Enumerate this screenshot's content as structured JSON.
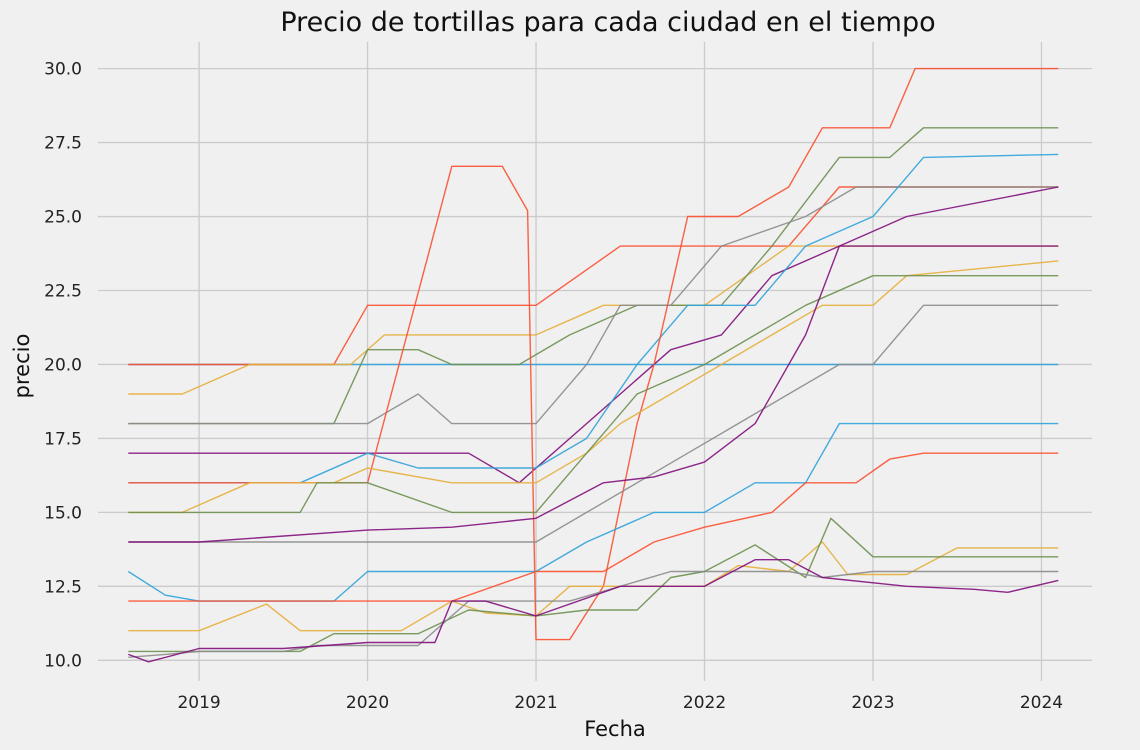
{
  "chart_data": {
    "type": "line",
    "title": "Precio de tortillas para cada ciudad en el tiempo",
    "xlabel": "Fecha",
    "ylabel": "precio",
    "xlim": [
      2018.4,
      2024.3
    ],
    "ylim": [
      9.3,
      30.9
    ],
    "x_ticks": [
      2019,
      2020,
      2021,
      2022,
      2023,
      2024
    ],
    "x_tick_labels": [
      "2019",
      "2020",
      "2021",
      "2022",
      "2023",
      "2024"
    ],
    "y_ticks": [
      10.0,
      12.5,
      15.0,
      17.5,
      20.0,
      22.5,
      25.0,
      27.5,
      30.0
    ],
    "y_tick_labels": [
      "10.0",
      "12.5",
      "15.0",
      "17.5",
      "20.0",
      "22.5",
      "25.0",
      "27.5",
      "30.0"
    ],
    "grid": true,
    "legend": "none",
    "palette": [
      "#30a2da",
      "#fc4f30",
      "#e5ae38",
      "#6d904f",
      "#8b8b8b",
      "#810f7c"
    ],
    "series": [
      {
        "values": [
          [
            2018.58,
            20
          ],
          [
            2019.0,
            20
          ],
          [
            2021.2,
            20
          ],
          [
            2022.0,
            20
          ],
          [
            2024.1,
            20
          ]
        ]
      },
      {
        "values": [
          [
            2018.58,
            20
          ],
          [
            2019.8,
            20
          ],
          [
            2020.0,
            22
          ],
          [
            2021.0,
            22
          ],
          [
            2021.5,
            24
          ],
          [
            2022.5,
            24
          ],
          [
            2022.8,
            26
          ],
          [
            2024.1,
            26
          ]
        ]
      },
      {
        "values": [
          [
            2018.58,
            19
          ],
          [
            2018.9,
            19
          ],
          [
            2019.3,
            20
          ],
          [
            2019.9,
            20
          ],
          [
            2020.1,
            21
          ],
          [
            2021.0,
            21
          ],
          [
            2021.4,
            22
          ],
          [
            2022.0,
            22
          ],
          [
            2022.5,
            24
          ],
          [
            2024.1,
            24
          ]
        ]
      },
      {
        "values": [
          [
            2018.58,
            18
          ],
          [
            2019.0,
            18
          ],
          [
            2019.8,
            18
          ],
          [
            2020.0,
            20.5
          ],
          [
            2020.3,
            20.5
          ],
          [
            2020.5,
            20
          ],
          [
            2020.9,
            20
          ],
          [
            2021.2,
            21
          ],
          [
            2021.6,
            22
          ],
          [
            2022.1,
            22
          ],
          [
            2022.4,
            24
          ],
          [
            2022.8,
            27
          ],
          [
            2023.1,
            27
          ],
          [
            2023.3,
            28
          ],
          [
            2024.1,
            28
          ]
        ]
      },
      {
        "values": [
          [
            2018.58,
            18
          ],
          [
            2020.0,
            18
          ],
          [
            2020.3,
            19
          ],
          [
            2020.5,
            18
          ],
          [
            2021.0,
            18
          ],
          [
            2021.3,
            20
          ],
          [
            2021.5,
            22
          ],
          [
            2021.8,
            22
          ],
          [
            2022.1,
            24
          ],
          [
            2022.6,
            25
          ],
          [
            2022.9,
            26
          ],
          [
            2023.2,
            26
          ],
          [
            2024.1,
            26
          ]
        ]
      },
      {
        "values": [
          [
            2018.58,
            17
          ],
          [
            2019.0,
            17
          ],
          [
            2019.5,
            17
          ],
          [
            2020.0,
            17
          ],
          [
            2020.6,
            17
          ],
          [
            2020.9,
            16
          ],
          [
            2021.3,
            18
          ],
          [
            2021.5,
            19
          ],
          [
            2021.8,
            20.5
          ],
          [
            2022.1,
            21
          ],
          [
            2022.4,
            23
          ],
          [
            2022.8,
            24
          ],
          [
            2023.2,
            25
          ],
          [
            2024.1,
            26
          ]
        ]
      },
      {
        "values": [
          [
            2018.58,
            16
          ],
          [
            2019.0,
            16
          ],
          [
            2019.6,
            16
          ],
          [
            2020.0,
            17
          ],
          [
            2020.3,
            16.5
          ],
          [
            2020.7,
            16.5
          ],
          [
            2021.0,
            16.5
          ],
          [
            2021.3,
            17.5
          ],
          [
            2021.6,
            20
          ],
          [
            2021.9,
            22
          ],
          [
            2022.3,
            22
          ],
          [
            2022.6,
            24
          ],
          [
            2023.0,
            25
          ],
          [
            2023.3,
            27
          ],
          [
            2024.1,
            27.1
          ]
        ]
      },
      {
        "values": [
          [
            2018.58,
            16
          ],
          [
            2019.0,
            16
          ],
          [
            2020.0,
            16
          ],
          [
            2020.5,
            26.7
          ],
          [
            2020.8,
            26.7
          ],
          [
            2020.95,
            25.2
          ],
          [
            2021.0,
            10.7
          ],
          [
            2021.2,
            10.7
          ],
          [
            2021.4,
            12.5
          ],
          [
            2021.6,
            18
          ],
          [
            2021.7,
            20
          ],
          [
            2021.9,
            25
          ],
          [
            2022.2,
            25
          ],
          [
            2022.5,
            26
          ],
          [
            2022.7,
            28
          ],
          [
            2023.1,
            28
          ],
          [
            2023.25,
            30
          ],
          [
            2024.1,
            30
          ]
        ]
      },
      {
        "values": [
          [
            2018.58,
            15
          ],
          [
            2018.9,
            15
          ],
          [
            2019.3,
            16
          ],
          [
            2019.8,
            16
          ],
          [
            2020.0,
            16.5
          ],
          [
            2020.5,
            16
          ],
          [
            2021.0,
            16
          ],
          [
            2021.3,
            17
          ],
          [
            2021.5,
            18
          ],
          [
            2021.8,
            19
          ],
          [
            2022.1,
            20
          ],
          [
            2022.4,
            21
          ],
          [
            2022.7,
            22
          ],
          [
            2023.0,
            22
          ],
          [
            2023.2,
            23
          ],
          [
            2024.1,
            23.5
          ]
        ]
      },
      {
        "values": [
          [
            2018.58,
            15
          ],
          [
            2019.0,
            15
          ],
          [
            2019.6,
            15
          ],
          [
            2019.7,
            16
          ],
          [
            2020.0,
            16
          ],
          [
            2020.5,
            15
          ],
          [
            2021.0,
            15
          ],
          [
            2021.3,
            17
          ],
          [
            2021.6,
            19
          ],
          [
            2022.0,
            20
          ],
          [
            2022.3,
            21
          ],
          [
            2022.6,
            22
          ],
          [
            2023.0,
            23
          ],
          [
            2023.3,
            23
          ],
          [
            2024.1,
            23
          ]
        ]
      },
      {
        "values": [
          [
            2018.58,
            14
          ],
          [
            2019.0,
            14
          ],
          [
            2020.0,
            14
          ],
          [
            2020.5,
            14
          ],
          [
            2021.0,
            14
          ],
          [
            2021.3,
            15
          ],
          [
            2021.6,
            16
          ],
          [
            2021.9,
            17
          ],
          [
            2022.2,
            18
          ],
          [
            2022.5,
            19
          ],
          [
            2022.8,
            20
          ],
          [
            2023.0,
            20
          ],
          [
            2023.3,
            22
          ],
          [
            2024.1,
            22
          ]
        ]
      },
      {
        "values": [
          [
            2018.58,
            14
          ],
          [
            2019.0,
            14
          ],
          [
            2020.0,
            14.4
          ],
          [
            2020.5,
            14.5
          ],
          [
            2021.0,
            14.8
          ],
          [
            2021.4,
            16
          ],
          [
            2021.7,
            16.2
          ],
          [
            2022.0,
            16.7
          ],
          [
            2022.3,
            18
          ],
          [
            2022.6,
            21
          ],
          [
            2022.8,
            24
          ],
          [
            2023.2,
            24
          ],
          [
            2024.1,
            24
          ]
        ]
      },
      {
        "values": [
          [
            2018.58,
            13
          ],
          [
            2018.8,
            12.2
          ],
          [
            2019.0,
            12
          ],
          [
            2019.5,
            12
          ],
          [
            2019.8,
            12
          ],
          [
            2020.0,
            13
          ],
          [
            2020.6,
            13
          ],
          [
            2021.0,
            13
          ],
          [
            2021.3,
            14
          ],
          [
            2021.7,
            15
          ],
          [
            2022.0,
            15
          ],
          [
            2022.3,
            16
          ],
          [
            2022.6,
            16
          ],
          [
            2022.8,
            18
          ],
          [
            2024.1,
            18
          ]
        ]
      },
      {
        "values": [
          [
            2018.58,
            12
          ],
          [
            2019.0,
            12
          ],
          [
            2020.0,
            12
          ],
          [
            2020.5,
            12
          ],
          [
            2021.0,
            13
          ],
          [
            2021.4,
            13
          ],
          [
            2021.7,
            14
          ],
          [
            2022.0,
            14.5
          ],
          [
            2022.4,
            15
          ],
          [
            2022.6,
            16
          ],
          [
            2022.9,
            16
          ],
          [
            2023.1,
            16.8
          ],
          [
            2023.3,
            17
          ],
          [
            2024.1,
            17
          ]
        ]
      },
      {
        "values": [
          [
            2018.58,
            11
          ],
          [
            2019.0,
            11
          ],
          [
            2019.4,
            11.9
          ],
          [
            2019.6,
            11
          ],
          [
            2020.0,
            11
          ],
          [
            2020.2,
            11
          ],
          [
            2020.5,
            12
          ],
          [
            2020.7,
            11.6
          ],
          [
            2021.0,
            11.5
          ],
          [
            2021.2,
            12.5
          ],
          [
            2021.6,
            12.5
          ],
          [
            2022.0,
            12.5
          ],
          [
            2022.2,
            13.2
          ],
          [
            2022.5,
            13
          ],
          [
            2022.7,
            14
          ],
          [
            2022.85,
            12.9
          ],
          [
            2023.2,
            12.9
          ],
          [
            2023.5,
            13.8
          ],
          [
            2024.1,
            13.8
          ]
        ]
      },
      {
        "values": [
          [
            2018.58,
            10.3
          ],
          [
            2019.0,
            10.3
          ],
          [
            2019.3,
            10.3
          ],
          [
            2019.6,
            10.3
          ],
          [
            2019.8,
            10.9
          ],
          [
            2020.0,
            10.9
          ],
          [
            2020.3,
            10.9
          ],
          [
            2020.6,
            11.7
          ],
          [
            2021.0,
            11.5
          ],
          [
            2021.3,
            11.7
          ],
          [
            2021.6,
            11.7
          ],
          [
            2021.8,
            12.8
          ],
          [
            2022.0,
            13
          ],
          [
            2022.3,
            13.9
          ],
          [
            2022.6,
            12.8
          ],
          [
            2022.75,
            14.8
          ],
          [
            2023.0,
            13.5
          ],
          [
            2024.1,
            13.5
          ]
        ]
      },
      {
        "values": [
          [
            2018.58,
            10.1
          ],
          [
            2018.8,
            10.2
          ],
          [
            2019.0,
            10.3
          ],
          [
            2019.5,
            10.3
          ],
          [
            2019.7,
            10.5
          ],
          [
            2020.0,
            10.5
          ],
          [
            2020.3,
            10.5
          ],
          [
            2020.6,
            12
          ],
          [
            2021.0,
            12
          ],
          [
            2021.2,
            12
          ],
          [
            2021.5,
            12.5
          ],
          [
            2021.8,
            13
          ],
          [
            2022.0,
            13
          ],
          [
            2022.5,
            13
          ],
          [
            2022.7,
            12.8
          ],
          [
            2023.0,
            13
          ],
          [
            2024.1,
            13
          ]
        ]
      },
      {
        "values": [
          [
            2018.58,
            10.2
          ],
          [
            2018.7,
            9.95
          ],
          [
            2019.0,
            10.4
          ],
          [
            2019.5,
            10.4
          ],
          [
            2020.0,
            10.6
          ],
          [
            2020.4,
            10.6
          ],
          [
            2020.5,
            12
          ],
          [
            2020.7,
            12
          ],
          [
            2021.0,
            11.5
          ],
          [
            2021.5,
            12.5
          ],
          [
            2022.0,
            12.5
          ],
          [
            2022.3,
            13.4
          ],
          [
            2022.5,
            13.4
          ],
          [
            2022.7,
            12.8
          ],
          [
            2023.2,
            12.5
          ],
          [
            2023.6,
            12.4
          ],
          [
            2023.8,
            12.3
          ],
          [
            2024.1,
            12.7
          ]
        ]
      }
    ]
  }
}
